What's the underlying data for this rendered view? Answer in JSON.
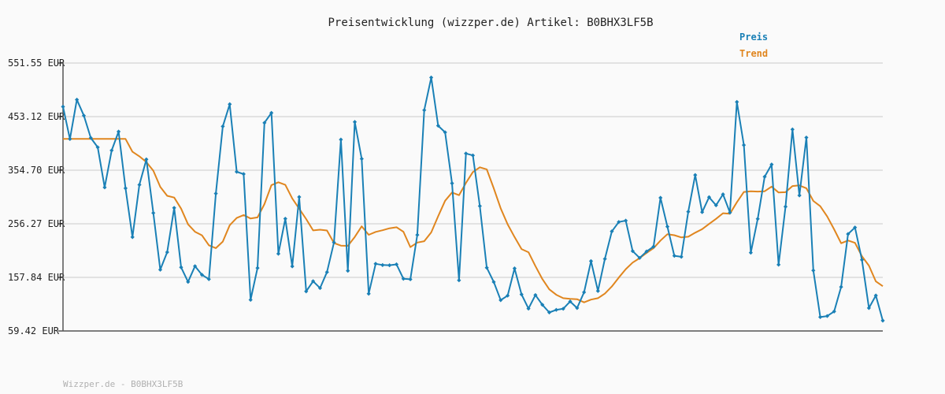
{
  "chart_data": {
    "type": "line",
    "title": "Preisentwicklung (wizzper.de) Artikel: B0BHX3LF5B",
    "y_ticks": [
      "551.55 EUR",
      "453.12 EUR",
      "354.70 EUR",
      "256.27 EUR",
      "157.84 EUR",
      "59.42 EUR"
    ],
    "ylim": [
      59.42,
      551.55
    ],
    "grid": true,
    "legend_position": "top-right",
    "series": [
      {
        "name": "Preis",
        "color": "#1a80b6",
        "marker": "diamond",
        "values": [
          471.4,
          412.0,
          484.2,
          455.0,
          414.1,
          396.8,
          323.1,
          391.0,
          425.6,
          321.5,
          231.8,
          328.0,
          374.6,
          276.1,
          171.9,
          204.1,
          285.5,
          176.3,
          149.6,
          178.4,
          162.6,
          154.5,
          311.9,
          435.2,
          475.9,
          351.8,
          347.6,
          116.6,
          175.1,
          441.8,
          460.0,
          201.3,
          265.6,
          178.1,
          305.5,
          132.2,
          150.8,
          138.2,
          167.5,
          222.0,
          411.0,
          170.0,
          443.4,
          375.6,
          127.8,
          182.8,
          180.5,
          180.1,
          181.8,
          155.3,
          154.3,
          235.9,
          465.0,
          524.9,
          436.4,
          424.3,
          330.6,
          152.5,
          385.4,
          381.9,
          288.9,
          175.6,
          149.4,
          116.0,
          124.3,
          174.4,
          126.5,
          100.5,
          125.4,
          107.5,
          93.4,
          98.2,
          100.2,
          113.6,
          101.6,
          130.5,
          187.7,
          132.9,
          191.8,
          242.3,
          259.6,
          262.1,
          206.1,
          193.6,
          205.4,
          214.3,
          304.0,
          251.1,
          197.5,
          195.6,
          278.5,
          345.9,
          277.7,
          305.1,
          290.3,
          310.4,
          276.9,
          480.1,
          400.8,
          203.2,
          265.4,
          342.8,
          365.2,
          181.2,
          287.8,
          429.6,
          308.4,
          414.7,
          170.6,
          84.9,
          86.8,
          95.2,
          140.3,
          237.5,
          249.5,
          190.1,
          101.5,
          124.6,
          78.4
        ]
      },
      {
        "name": "Trend",
        "color": "#e0861f",
        "marker": "none",
        "values": [
          412.1,
          412.1,
          412.1,
          412.1,
          412.1,
          412.1,
          412.1,
          412.1,
          412.1,
          412.1,
          388.6,
          380.2,
          369.6,
          353.9,
          324.1,
          307.6,
          304.5,
          284.0,
          255.2,
          241.7,
          235.1,
          216.7,
          211.5,
          223.5,
          253.6,
          267.0,
          272.4,
          266.0,
          268.0,
          292.5,
          327.4,
          332.6,
          327.8,
          302.9,
          284.1,
          264.9,
          244.1,
          245.4,
          244.0,
          221.0,
          216.2,
          215.8,
          232.1,
          251.7,
          236.0,
          241.3,
          244.4,
          248.0,
          249.9,
          241.6,
          213.5,
          221.8,
          224.3,
          240.5,
          270.2,
          298.6,
          313.7,
          308.8,
          331.4,
          351.3,
          360.0,
          356.3,
          321.4,
          284.6,
          255.4,
          231.9,
          209.8,
          204.0,
          178.5,
          154.8,
          135.9,
          125.9,
          119.7,
          118.3,
          117.7,
          111.9,
          117.1,
          119.7,
          128.0,
          141.0,
          157.6,
          172.9,
          185.1,
          193.1,
          202.8,
          211.5,
          225.4,
          237.1,
          235.3,
          231.2,
          232.5,
          239.9,
          246.4,
          256.0,
          265.4,
          275.7,
          274.8,
          295.8,
          314.8,
          316.1,
          315.5,
          316.0,
          324.6,
          313.8,
          314.3,
          325.6,
          326.7,
          321.6,
          298.2,
          288.6,
          269.8,
          246.2,
          220.5,
          225.6,
          221.3,
          196.8,
          179.4,
          150.5,
          141.7
        ]
      }
    ],
    "footer": "Wizzper.de - B0BHX3LF5B"
  }
}
